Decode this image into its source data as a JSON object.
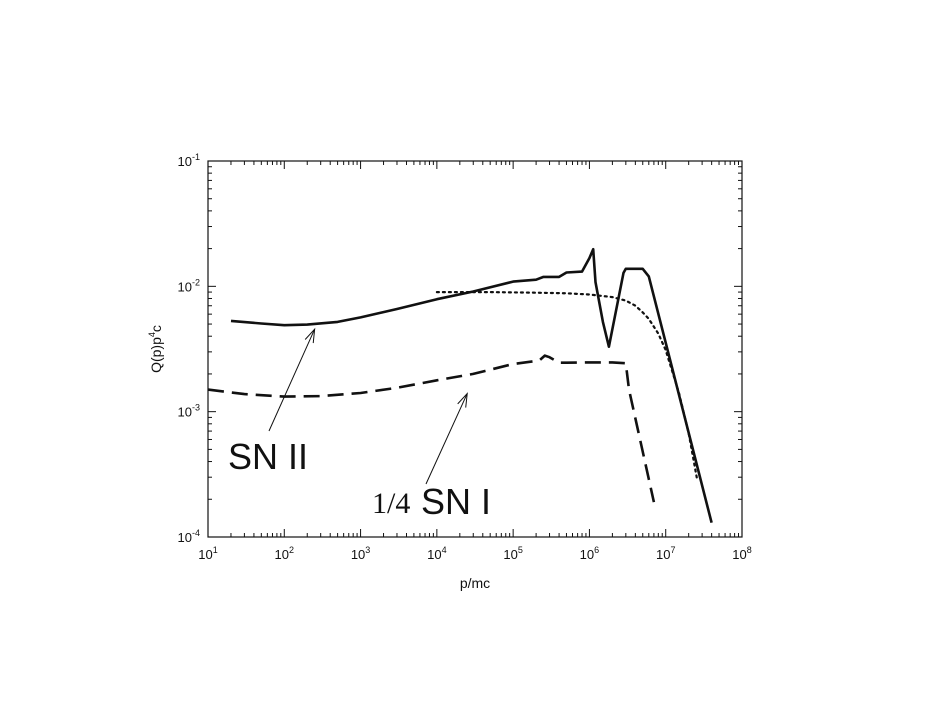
{
  "chart_data": {
    "type": "line",
    "title": "",
    "xlabel": "p/mc",
    "ylabel_parts": {
      "base": "Q(p)p",
      "sup": "4",
      "tail": "c"
    },
    "xscale": "log",
    "yscale": "log",
    "xlim": [
      10,
      100000000
    ],
    "ylim": [
      0.0001,
      0.1
    ],
    "grid": false,
    "x_ticks": [
      {
        "base": "10",
        "exp": "1",
        "value": 10
      },
      {
        "base": "10",
        "exp": "2",
        "value": 100
      },
      {
        "base": "10",
        "exp": "3",
        "value": 1000
      },
      {
        "base": "10",
        "exp": "4",
        "value": 10000
      },
      {
        "base": "10",
        "exp": "5",
        "value": 100000
      },
      {
        "base": "10",
        "exp": "6",
        "value": 1000000
      },
      {
        "base": "10",
        "exp": "7",
        "value": 10000000
      },
      {
        "base": "10",
        "exp": "8",
        "value": 100000000
      }
    ],
    "y_ticks": [
      {
        "base": "10",
        "exp": "-4",
        "value": 0.0001
      },
      {
        "base": "10",
        "exp": "-3",
        "value": 0.001
      },
      {
        "base": "10",
        "exp": "-2",
        "value": 0.01
      },
      {
        "base": "10",
        "exp": "-1",
        "value": 0.1
      }
    ],
    "series": [
      {
        "style": "solid",
        "x": [
          20,
          50,
          100,
          200,
          500,
          1000,
          3000,
          10000,
          30000,
          100000,
          200000,
          250000,
          400000,
          500000,
          800000,
          1000000,
          1120000,
          1200000,
          1500000,
          1800000,
          2800000,
          3000000,
          3500000,
          5000000,
          6000000,
          40000000
        ],
        "y": [
          0.0053,
          0.00505,
          0.0049,
          0.00495,
          0.0052,
          0.00565,
          0.0066,
          0.0079,
          0.0091,
          0.0109,
          0.0113,
          0.0119,
          0.0119,
          0.0129,
          0.0131,
          0.0168,
          0.0198,
          0.0108,
          0.0052,
          0.0033,
          0.0128,
          0.0138,
          0.0138,
          0.0138,
          0.012,
          0.00013
        ]
      },
      {
        "style": "dashed",
        "x": [
          10,
          30,
          100,
          300,
          1000,
          3000,
          10000,
          30000,
          100000,
          180000,
          220000,
          260000,
          300000,
          350000,
          400000,
          500000,
          1000000,
          2000000,
          3000000,
          3300000,
          7000000
        ],
        "y": [
          0.0015,
          0.00138,
          0.00132,
          0.00133,
          0.00141,
          0.00155,
          0.00178,
          0.002,
          0.0024,
          0.00252,
          0.00256,
          0.0028,
          0.00272,
          0.00258,
          0.00246,
          0.00246,
          0.00247,
          0.00247,
          0.00243,
          0.0015,
          0.00019
        ]
      },
      {
        "style": "dotted",
        "x": [
          10000,
          50000,
          200000,
          500000,
          1000000,
          2000000,
          3000000,
          4000000,
          5000000,
          6000000,
          8000000,
          10000000,
          15000000,
          20000000,
          26000000
        ],
        "y": [
          0.009,
          0.009,
          0.0089,
          0.0088,
          0.0086,
          0.0082,
          0.0077,
          0.007,
          0.0062,
          0.0055,
          0.0042,
          0.0031,
          0.0014,
          0.00067,
          0.00028
        ]
      }
    ],
    "annotations": [
      {
        "id": "sn2",
        "text": "SN II",
        "prefix": "",
        "points_to": {
          "x": 250,
          "y": 0.0049
        }
      },
      {
        "id": "sn1",
        "text": "SN I",
        "prefix": "1/4",
        "points_to": {
          "x": 25000,
          "y": 0.0015
        }
      }
    ]
  }
}
